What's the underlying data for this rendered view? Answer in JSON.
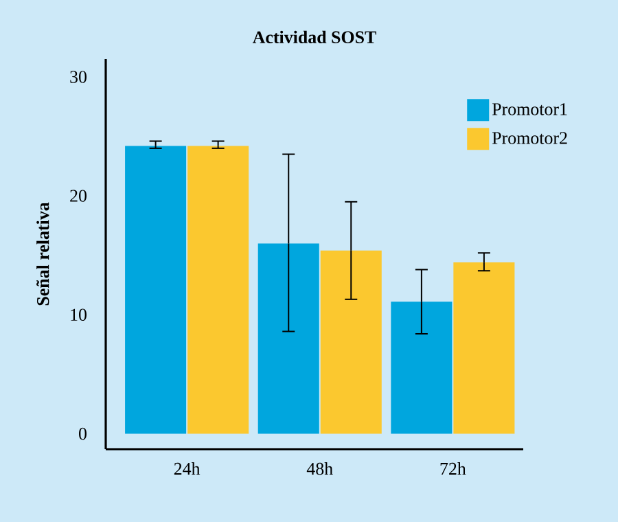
{
  "chart_data": {
    "type": "bar",
    "title": "Actividad SOST",
    "ylabel": "Señal relativa",
    "categories": [
      "24h",
      "48h",
      "72h"
    ],
    "series": [
      {
        "name": "Promotor1",
        "color": "#00a6de",
        "values": [
          24.2,
          16.0,
          11.1
        ],
        "errors": [
          [
            24.0,
            24.6
          ],
          [
            8.6,
            23.5
          ],
          [
            8.4,
            13.8
          ]
        ]
      },
      {
        "name": "Promotor2",
        "color": "#fbc82f",
        "values": [
          24.2,
          15.4,
          14.4
        ],
        "errors": [
          [
            24.0,
            24.6
          ],
          [
            11.3,
            19.5
          ],
          [
            13.7,
            15.2
          ]
        ]
      }
    ],
    "ylim": [
      -1.3,
      31.5
    ],
    "yticks": [
      0,
      10,
      20,
      30
    ],
    "legend": "top right"
  }
}
